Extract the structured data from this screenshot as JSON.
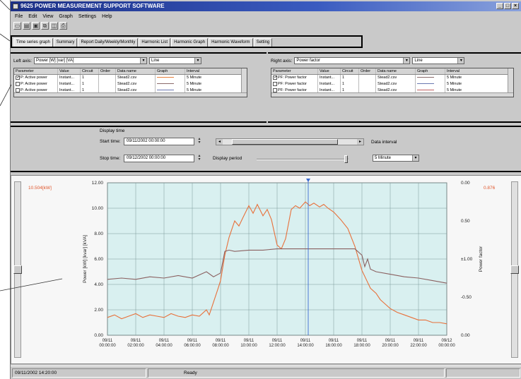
{
  "window": {
    "title": "9625 POWER MEASUREMENT SUPPORT SOFTWARE",
    "controls": [
      "_",
      "□",
      "×"
    ]
  },
  "menu": [
    "File",
    "Edit",
    "View",
    "Graph",
    "Settings",
    "Help"
  ],
  "toolbar": [
    "open-icon",
    "save-icon",
    "disk-icon",
    "copy-icon",
    "preview-icon",
    "print-icon"
  ],
  "tabs": [
    {
      "label": "Time series graph",
      "active": true
    },
    {
      "label": "Summary",
      "active": false
    },
    {
      "label": "Report Daily/Weekly/Monthly",
      "active": false
    },
    {
      "label": "Harmonic List",
      "active": false
    },
    {
      "label": "Harmonic Graph",
      "active": false
    },
    {
      "label": "Harmonic Waveform",
      "active": false
    },
    {
      "label": "Setting",
      "active": false
    }
  ],
  "left_axis": {
    "label": "Left axis:",
    "selection": "Power [W] [var] [VA]",
    "style": "Line",
    "columns": [
      "Parameter",
      "Value",
      "Circuit",
      "Order",
      "Data name",
      "Graph",
      "Interval"
    ],
    "rows": [
      {
        "checked": true,
        "parameter": "P: Active power",
        "value": "Instant...",
        "circuit": "1",
        "order": "",
        "data_name": "Stead2.csv",
        "color": "#e8803c",
        "interval": "5 Minute"
      },
      {
        "checked": false,
        "parameter": "P: Active power",
        "value": "Instant...",
        "circuit": "1",
        "order": "",
        "data_name": "Stead2.csv",
        "color": "#8a6a6a",
        "interval": "5 Minute"
      },
      {
        "checked": false,
        "parameter": "P: Active power",
        "value": "Instant...",
        "circuit": "1",
        "order": "",
        "data_name": "Stead2.csv",
        "color": "#6a78b0",
        "interval": "5 Minute"
      }
    ]
  },
  "right_axis": {
    "label": "Right axis:",
    "selection": "Power factor",
    "style": "Line",
    "columns": [
      "Parameter",
      "Value",
      "Circuit",
      "Order",
      "Data name",
      "Graph",
      "Interval"
    ],
    "rows": [
      {
        "checked": true,
        "parameter": "PF: Power factor",
        "value": "Instant...",
        "circuit": "1",
        "order": "",
        "data_name": "Stead2.csv",
        "color": "#8a6a6a",
        "interval": "5 Minute"
      },
      {
        "checked": false,
        "parameter": "PF: Power factor",
        "value": "Instant...",
        "circuit": "1",
        "order": "",
        "data_name": "Stead2.csv",
        "color": "#6a78b0",
        "interval": "5 Minute"
      },
      {
        "checked": false,
        "parameter": "PF: Power factor",
        "value": "Instant...",
        "circuit": "1",
        "order": "",
        "data_name": "Stead2.csv",
        "color": "#c06060",
        "interval": "5 Minute"
      }
    ]
  },
  "display_time": {
    "title": "Display time",
    "start_label": "Start time:",
    "start_value": "09/11/2002 00:00:00",
    "stop_label": "Stop time:",
    "stop_value": "09/12/2002 00:00:00",
    "period_label": "Display period",
    "interval_label": "Data interval",
    "interval_value": "5 Minute"
  },
  "graph": {
    "cursor_left_value": "10.504[kW]",
    "cursor_right_value": "0.876",
    "left_axis_title": "Power [kW] [kvar] [kVA]",
    "right_axis_title": "Power factor"
  },
  "chart_data": {
    "type": "line",
    "ylim_left": [
      0,
      12
    ],
    "ylim_right": [
      -1,
      1
    ],
    "y_ticks_left": [
      "0.00",
      "2.00",
      "4.00",
      "6.00",
      "8.00",
      "10.00",
      "12.00"
    ],
    "y_ticks_right": [
      "0.00",
      "-0.50",
      "±1.00",
      "0.50",
      "0.00"
    ],
    "x_ticks": [
      "09/11\n00:00:00",
      "09/11\n02:00:00",
      "09/11\n04:00:00",
      "09/11\n06:00:00",
      "09/11\n08:00:00",
      "09/11\n10:00:00",
      "09/11\n12:00:00",
      "09/11\n14:00:00",
      "09/11\n16:00:00",
      "09/11\n18:00:00",
      "09/11\n20:00:00",
      "09/11\n22:00:00",
      "09/12\n00:00:00"
    ],
    "grid": true,
    "cursor_hour": 14.2,
    "series": [
      {
        "color": "#e8703a",
        "x": [
          0,
          0.5,
          1,
          1.5,
          2,
          2.5,
          3,
          3.5,
          4,
          4.5,
          5,
          5.5,
          6,
          6.5,
          7,
          7.2,
          7.5,
          7.8,
          8,
          8.3,
          8.6,
          9,
          9.3,
          9.6,
          10,
          10.3,
          10.6,
          11,
          11.3,
          11.6,
          12,
          12.3,
          12.6,
          13,
          13.3,
          13.6,
          14,
          14.3,
          14.6,
          15,
          15.3,
          15.6,
          16,
          16.5,
          17,
          17.5,
          18,
          18.3,
          18.6,
          19,
          19.3,
          19.6,
          20,
          20.5,
          21,
          21.5,
          22,
          22.5,
          23,
          23.5,
          24
        ],
        "y": [
          1.4,
          1.6,
          1.3,
          1.5,
          1.7,
          1.4,
          1.6,
          1.5,
          1.4,
          1.7,
          1.5,
          1.4,
          1.6,
          1.5,
          2.0,
          1.6,
          2.6,
          3.6,
          4.3,
          6.3,
          7.7,
          9.0,
          8.6,
          9.3,
          10.2,
          9.6,
          10.3,
          9.4,
          9.9,
          9.1,
          7.1,
          6.8,
          7.6,
          9.9,
          10.2,
          10.0,
          10.5,
          10.2,
          10.4,
          10.1,
          10.3,
          10.0,
          9.7,
          9.1,
          8.4,
          7.0,
          5.1,
          4.4,
          3.7,
          3.3,
          2.8,
          2.5,
          2.1,
          1.8,
          1.6,
          1.4,
          1.2,
          1.2,
          1.0,
          1.0,
          0.9
        ]
      },
      {
        "color": "#8a6060",
        "x": [
          0,
          1,
          2,
          3,
          4,
          5,
          6,
          7,
          7.5,
          8,
          8.3,
          8.6,
          9,
          10,
          11,
          12,
          13,
          14,
          15,
          16,
          17,
          17.5,
          18,
          18.2,
          18.4,
          18.6,
          19,
          20,
          21,
          22,
          23,
          24
        ],
        "y": [
          4.4,
          4.5,
          4.4,
          4.6,
          4.5,
          4.7,
          4.5,
          5.0,
          4.6,
          4.9,
          6.6,
          6.7,
          6.6,
          6.7,
          6.7,
          6.8,
          6.8,
          6.8,
          6.8,
          6.8,
          6.8,
          6.8,
          6.3,
          5.4,
          6.0,
          5.2,
          5.0,
          4.8,
          4.6,
          4.5,
          4.3,
          4.1
        ]
      }
    ]
  },
  "status": {
    "datetime": "09/11/2002 14:20:00",
    "state": "Ready"
  }
}
